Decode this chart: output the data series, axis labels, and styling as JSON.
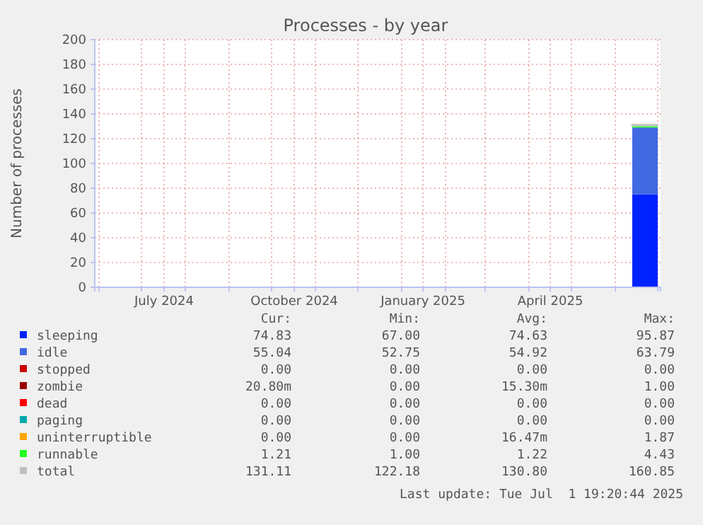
{
  "chart_data": {
    "type": "area",
    "stacked": true,
    "title": "Processes - by year",
    "ylabel": "Number of processes",
    "x": [
      "2025-06-13",
      "2025-06-20",
      "2025-07-01"
    ],
    "xlim": [
      "2024-05-29",
      "2025-07-03"
    ],
    "xticks": [
      {
        "value": "2024-06-01",
        "label": null
      },
      {
        "value": "2024-07-01",
        "label": null
      },
      {
        "value": "2024-07-17",
        "label": "July 2024"
      },
      {
        "value": "2024-08-01",
        "label": null
      },
      {
        "value": "2024-09-01",
        "label": null
      },
      {
        "value": "2024-10-01",
        "label": null
      },
      {
        "value": "2024-10-17",
        "label": "October 2024"
      },
      {
        "value": "2024-11-01",
        "label": null
      },
      {
        "value": "2024-12-01",
        "label": null
      },
      {
        "value": "2025-01-01",
        "label": null
      },
      {
        "value": "2025-01-16",
        "label": "January 2025"
      },
      {
        "value": "2025-02-01",
        "label": null
      },
      {
        "value": "2025-03-01",
        "label": null
      },
      {
        "value": "2025-04-01",
        "label": null
      },
      {
        "value": "2025-04-16",
        "label": "April 2025"
      },
      {
        "value": "2025-05-01",
        "label": null
      },
      {
        "value": "2025-06-01",
        "label": null
      },
      {
        "value": "2025-07-01",
        "label": null
      }
    ],
    "ylim": [
      0,
      200
    ],
    "yticks": [
      0,
      20,
      40,
      60,
      80,
      100,
      120,
      140,
      160,
      180,
      200
    ],
    "grid": true,
    "legend": "bottom",
    "series": [
      {
        "name": "sleeping",
        "color": "#0022ff",
        "values": [
          73,
          75,
          75
        ]
      },
      {
        "name": "idle",
        "color": "#4169e1",
        "values": [
          55,
          54,
          54
        ]
      },
      {
        "name": "stopped",
        "color": "#cc0000",
        "values": [
          null,
          null,
          null
        ]
      },
      {
        "name": "zombie",
        "color": "#990000",
        "values": [
          null,
          null,
          null
        ]
      },
      {
        "name": "dead",
        "color": "#ff0000",
        "values": [
          null,
          null,
          null
        ]
      },
      {
        "name": "paging",
        "color": "#00aaaa",
        "values": [
          null,
          null,
          null
        ]
      },
      {
        "name": "uninterruptible",
        "color": "#ffa500",
        "values": [
          null,
          null,
          null
        ]
      },
      {
        "name": "runnable",
        "color": "#22ff22",
        "values": [
          2,
          1,
          1
        ]
      },
      {
        "name": "total",
        "type": "line",
        "color": "#c0c0c0",
        "values": [
          130,
          131,
          131
        ]
      }
    ],
    "annotations": [
      "Cur:",
      "Min:",
      "Avg:",
      "Max:",
      "74.83",
      "67.00",
      "74.63",
      "95.87",
      "55.04",
      "52.75",
      "54.92",
      "63.79",
      "0.00",
      "0.00",
      "0.00",
      "0.00",
      "20.80m",
      "0.00",
      "15.30m",
      "1.00",
      "0.00",
      "0.00",
      "0.00",
      "0.00",
      "0.00",
      "0.00",
      "0.00",
      "0.00",
      "0.00",
      "0.00",
      "16.47m",
      "1.87",
      "1.21",
      "1.00",
      "1.22",
      "4.43",
      "131.11",
      "122.18",
      "130.80",
      "160.85",
      "Last update: Tue Jul  1 19:20:44 2025"
    ]
  }
}
